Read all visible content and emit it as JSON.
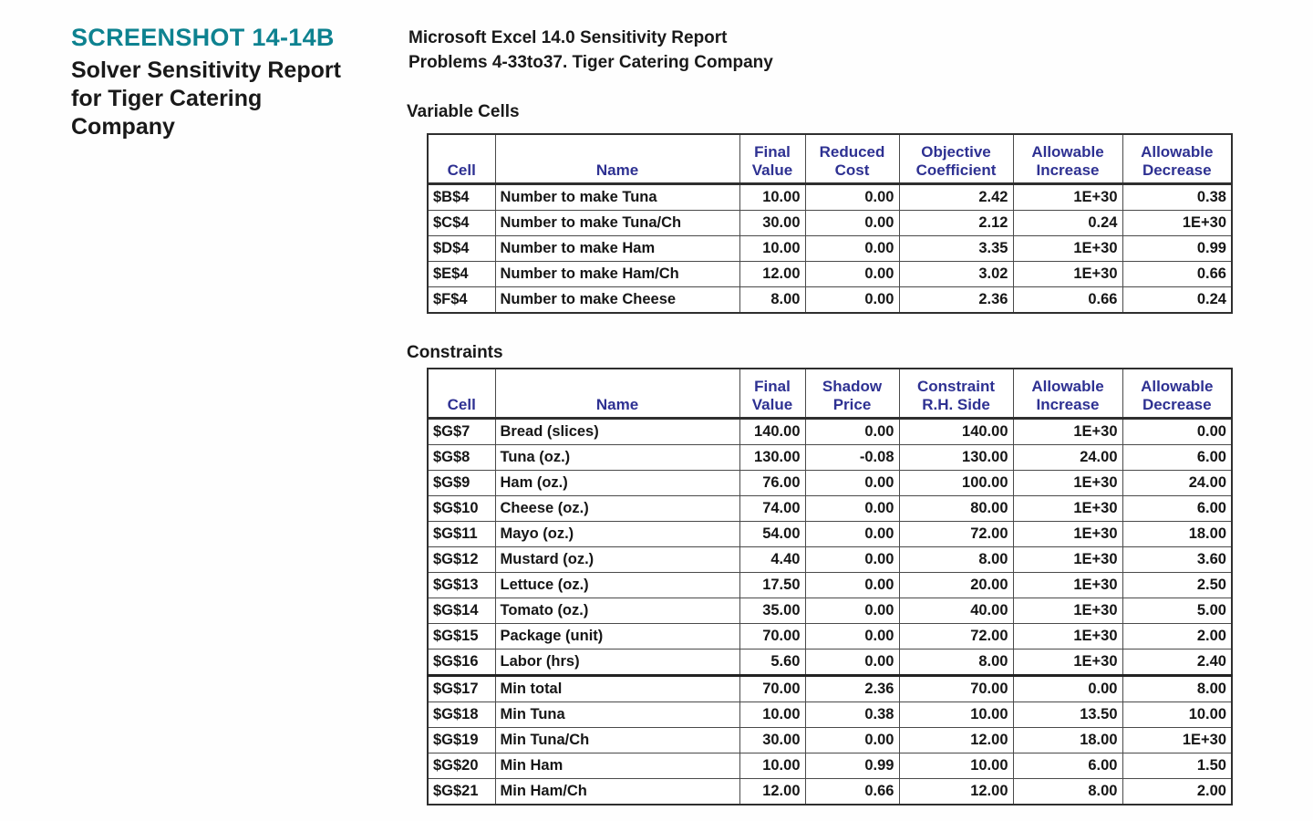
{
  "colors": {
    "accent_teal": "#0e8290",
    "header_navy": "#2e3192",
    "text_dark": "#191919",
    "border_outer": "#2f2f2f",
    "border_inner": "#4a4a4a"
  },
  "figure_caption": {
    "label": "SCREENSHOT 14-14B",
    "title_lines": [
      "Solver Sensitivity Report",
      "for Tiger Catering",
      "Company"
    ]
  },
  "report_header": {
    "line1": "Microsoft Excel 14.0 Sensitivity Report",
    "line2": "Problems 4-33to37. Tiger Catering Company"
  },
  "variable_cells": {
    "section_label": "Variable Cells",
    "columns": [
      "Cell",
      "Name",
      "Final\nValue",
      "Reduced\nCost",
      "Objective\nCoefficient",
      "Allowable\nIncrease",
      "Allowable\nDecrease"
    ],
    "rows": [
      [
        "$B$4",
        "Number to make Tuna",
        "10.00",
        "0.00",
        "2.42",
        "1E+30",
        "0.38"
      ],
      [
        "$C$4",
        "Number to make Tuna/Ch",
        "30.00",
        "0.00",
        "2.12",
        "0.24",
        "1E+30"
      ],
      [
        "$D$4",
        "Number to make Ham",
        "10.00",
        "0.00",
        "3.35",
        "1E+30",
        "0.99"
      ],
      [
        "$E$4",
        "Number to make Ham/Ch",
        "12.00",
        "0.00",
        "3.02",
        "1E+30",
        "0.66"
      ],
      [
        "$F$4",
        "Number to make Cheese",
        "8.00",
        "0.00",
        "2.36",
        "0.66",
        "0.24"
      ]
    ]
  },
  "constraints": {
    "section_label": "Constraints",
    "columns": [
      "Cell",
      "Name",
      "Final\nValue",
      "Shadow\nPrice",
      "Constraint\nR.H. Side",
      "Allowable\nIncrease",
      "Allowable\nDecrease"
    ],
    "heavy_divider_after_row": 9,
    "rows": [
      [
        "$G$7",
        "Bread (slices)",
        "140.00",
        "0.00",
        "140.00",
        "1E+30",
        "0.00"
      ],
      [
        "$G$8",
        "Tuna (oz.)",
        "130.00",
        "-0.08",
        "130.00",
        "24.00",
        "6.00"
      ],
      [
        "$G$9",
        "Ham (oz.)",
        "76.00",
        "0.00",
        "100.00",
        "1E+30",
        "24.00"
      ],
      [
        "$G$10",
        "Cheese (oz.)",
        "74.00",
        "0.00",
        "80.00",
        "1E+30",
        "6.00"
      ],
      [
        "$G$11",
        "Mayo (oz.)",
        "54.00",
        "0.00",
        "72.00",
        "1E+30",
        "18.00"
      ],
      [
        "$G$12",
        "Mustard (oz.)",
        "4.40",
        "0.00",
        "8.00",
        "1E+30",
        "3.60"
      ],
      [
        "$G$13",
        "Lettuce (oz.)",
        "17.50",
        "0.00",
        "20.00",
        "1E+30",
        "2.50"
      ],
      [
        "$G$14",
        "Tomato (oz.)",
        "35.00",
        "0.00",
        "40.00",
        "1E+30",
        "5.00"
      ],
      [
        "$G$15",
        "Package (unit)",
        "70.00",
        "0.00",
        "72.00",
        "1E+30",
        "2.00"
      ],
      [
        "$G$16",
        "Labor (hrs)",
        "5.60",
        "0.00",
        "8.00",
        "1E+30",
        "2.40"
      ],
      [
        "$G$17",
        "Min total",
        "70.00",
        "2.36",
        "70.00",
        "0.00",
        "8.00"
      ],
      [
        "$G$18",
        "Min Tuna",
        "10.00",
        "0.38",
        "10.00",
        "13.50",
        "10.00"
      ],
      [
        "$G$19",
        "Min Tuna/Ch",
        "30.00",
        "0.00",
        "12.00",
        "18.00",
        "1E+30"
      ],
      [
        "$G$20",
        "Min Ham",
        "10.00",
        "0.99",
        "10.00",
        "6.00",
        "1.50"
      ],
      [
        "$G$21",
        "Min Ham/Ch",
        "12.00",
        "0.66",
        "12.00",
        "8.00",
        "2.00"
      ]
    ]
  }
}
